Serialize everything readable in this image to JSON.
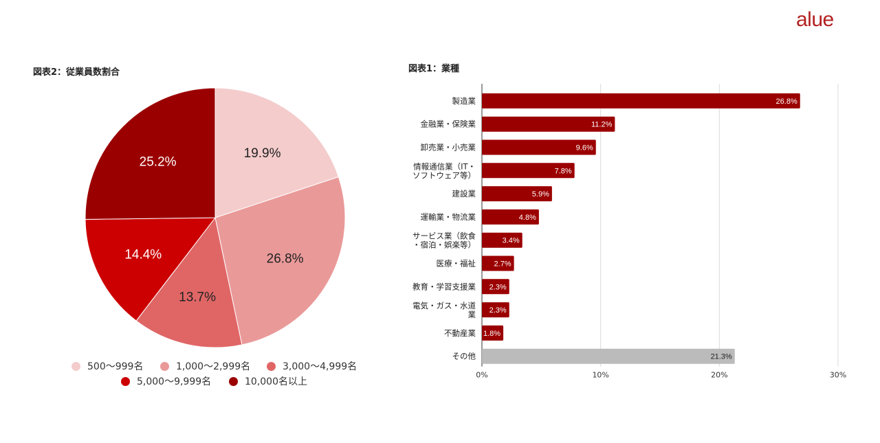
{
  "brand": {
    "logo": "alue"
  },
  "colors": {
    "dark_red": "#9b0000",
    "red": "#cc0000",
    "mid_red": "#e06666",
    "pink": "#ea9999",
    "light_pink": "#f4cccc",
    "gray": "#bbbbbb",
    "grid": "#d9d9d9"
  },
  "chart_data": [
    {
      "type": "pie",
      "title": "図表2：従業員数割合",
      "slices": [
        {
          "name": "500〜999名",
          "value": 19.9,
          "label": "19.9%",
          "color": "#f4cccc"
        },
        {
          "name": "1,000〜2,999名",
          "value": 26.8,
          "label": "26.8%",
          "color": "#ea9999"
        },
        {
          "name": "3,000〜4,999名",
          "value": 13.7,
          "label": "13.7%",
          "color": "#e06666"
        },
        {
          "name": "5,000〜9,999名",
          "value": 14.4,
          "label": "14.4%",
          "color": "#cc0000"
        },
        {
          "name": "10,000名以上",
          "value": 25.2,
          "label": "25.2%",
          "color": "#9b0000"
        }
      ],
      "legend_position": "bottom"
    },
    {
      "type": "bar",
      "orientation": "horizontal",
      "title": "図表1：業種",
      "categories": [
        [
          "製造業"
        ],
        [
          "金融業・保険業"
        ],
        [
          "卸売業・小売業"
        ],
        [
          "情報通信業（IT・",
          "ソフトウェア等）"
        ],
        [
          "建設業"
        ],
        [
          "運輸業・物流業"
        ],
        [
          "サービス業（飲食",
          "・宿泊・娯楽等）"
        ],
        [
          "医療・福祉"
        ],
        [
          "教育・学習支援業"
        ],
        [
          "電気・ガス・水道",
          "業"
        ],
        [
          "不動産業"
        ],
        [
          "その他"
        ]
      ],
      "values": [
        26.8,
        11.2,
        9.6,
        7.8,
        5.9,
        4.8,
        3.4,
        2.7,
        2.3,
        2.3,
        1.8,
        21.3
      ],
      "data_labels": [
        "26.8%",
        "11.2%",
        "9.6%",
        "7.8%",
        "5.9%",
        "4.8%",
        "3.4%",
        "2.7%",
        "2.3%",
        "2.3%",
        "1.8%",
        "21.3%"
      ],
      "bar_colors": [
        "#9b0000",
        "#9b0000",
        "#9b0000",
        "#9b0000",
        "#9b0000",
        "#9b0000",
        "#9b0000",
        "#9b0000",
        "#9b0000",
        "#9b0000",
        "#9b0000",
        "#bbbbbb"
      ],
      "xlim": [
        0,
        30
      ],
      "xticks": [
        0,
        10,
        20,
        30
      ],
      "xtick_labels": [
        "0%",
        "10%",
        "20%",
        "30%"
      ],
      "grid": true
    }
  ]
}
